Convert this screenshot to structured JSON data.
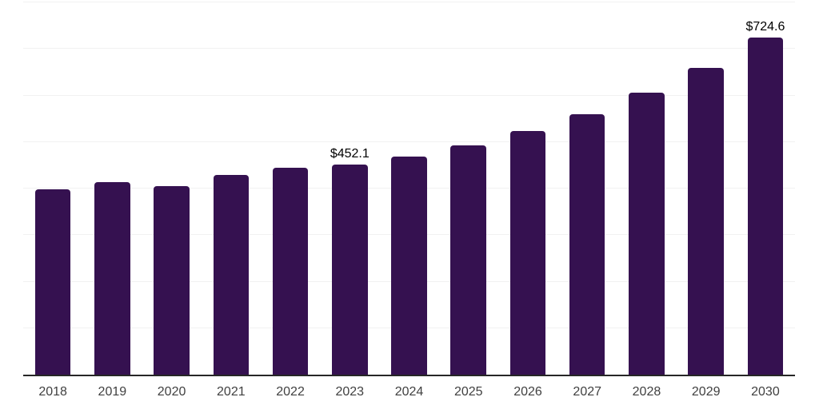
{
  "chart_data": {
    "type": "bar",
    "title": "",
    "xlabel": "",
    "ylabel": "",
    "categories": [
      "2018",
      "2019",
      "2020",
      "2021",
      "2022",
      "2023",
      "2024",
      "2025",
      "2026",
      "2027",
      "2028",
      "2029",
      "2030"
    ],
    "values": [
      398.0,
      414.6,
      404.6,
      429.2,
      444.8,
      452.1,
      469.4,
      493.1,
      523.1,
      558.9,
      606.2,
      660.1,
      724.6
    ],
    "data_labels": [
      "",
      "",
      "",
      "",
      "",
      "$452.1",
      "",
      "",
      "",
      "",
      "",
      "",
      "$724.6"
    ],
    "ylim": [
      0,
      800
    ],
    "gridline_step": 100,
    "grid": "horizontal-only",
    "legend_position": "none",
    "colors": {
      "bar": "#351150",
      "gridline": "#f1f1f1",
      "axis_line": "#262626",
      "tick_label": "#404040",
      "data_label": "#000000",
      "background": "#ffffff"
    }
  }
}
